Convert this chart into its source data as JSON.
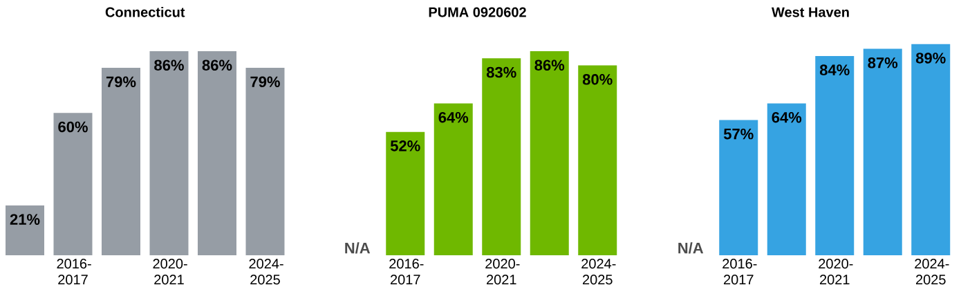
{
  "chart_data": [
    {
      "type": "bar",
      "title": "Connecticut",
      "categories": [
        null,
        "2016-2017",
        null,
        "2020-2021",
        null,
        "2024-2025"
      ],
      "values": [
        21,
        60,
        79,
        86,
        86,
        79
      ],
      "color": "#969da5",
      "value_labels": [
        "21%",
        "60%",
        "79%",
        "86%",
        "86%",
        "79%"
      ]
    },
    {
      "type": "bar",
      "title": "PUMA 0920602",
      "categories": [
        null,
        "2016-2017",
        null,
        "2020-2021",
        null,
        "2024-2025"
      ],
      "values": [
        null,
        52,
        64,
        83,
        86,
        80
      ],
      "color": "#6fb800",
      "value_labels": [
        "N/A",
        "52%",
        "64%",
        "83%",
        "86%",
        "80%"
      ]
    },
    {
      "type": "bar",
      "title": "West Haven",
      "categories": [
        null,
        "2016-2017",
        null,
        "2020-2021",
        null,
        "2024-2025"
      ],
      "values": [
        null,
        57,
        64,
        84,
        87,
        89
      ],
      "color": "#36a3e2",
      "value_labels": [
        "N/A",
        "57%",
        "64%",
        "84%",
        "87%",
        "89%"
      ]
    }
  ]
}
